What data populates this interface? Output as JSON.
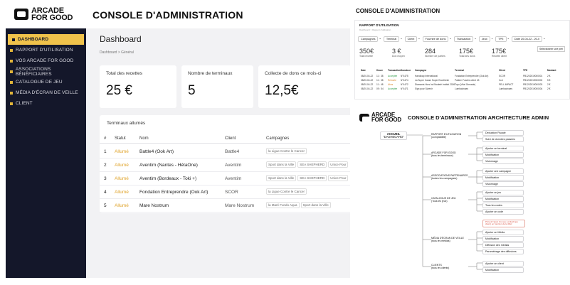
{
  "brand": {
    "line1": "ARCADE",
    "line2": "FOR GOOD"
  },
  "header": {
    "title": "CONSOLE D'ADMINISTRATION"
  },
  "sidebar": {
    "items": [
      {
        "label": "DASHBOARD",
        "active": true
      },
      {
        "label": "RAPPORT D'UTILISATION"
      },
      {
        "label": "VOS ARCADE FOR GOOD"
      },
      {
        "label": "ASSOCIATIONS BÉNÉFICIAIRES"
      },
      {
        "label": "CATALOGUE DE JEU"
      },
      {
        "label": "MÉDIA D'ÉCRAN DE VEILLE"
      },
      {
        "label": "CLIENT"
      }
    ]
  },
  "dashboard": {
    "title": "Dashboard",
    "breadcrumb": "Dashboard > Général",
    "cards": [
      {
        "label": "Total des recettes",
        "value": "25 €"
      },
      {
        "label": "Nombre de terminaux",
        "value": "5"
      },
      {
        "label": "Collecte de dons ce mois-ci",
        "value": "12,5€"
      }
    ],
    "terminals": {
      "title": "Terminaux allumés",
      "columns": [
        "#",
        "Statut",
        "Nom",
        "Client",
        "Campagnes"
      ],
      "rows": [
        {
          "n": "1",
          "status": "Allumé",
          "name": "Battle4 (Ook Art)",
          "client": "Battle4",
          "campaigns": [
            "la Ligue Contre le Cancer"
          ]
        },
        {
          "n": "2",
          "status": "Allumé",
          "name": "Aventim (Nantes - HétaOne)",
          "client": "Aventim",
          "campaigns": [
            "Sport dans la Ville",
            "SEA SHEPHERD",
            "Unice Pour"
          ]
        },
        {
          "n": "3",
          "status": "Allumé",
          "name": "Aventim (Bordeaux - Toki +)",
          "client": "Aventim",
          "campaigns": [
            "Sport dans la Ville",
            "SEA SHEPHERD",
            "Unice Pour"
          ]
        },
        {
          "n": "4",
          "status": "Allumé",
          "name": "Fondation Entreprendre (Ook Art)",
          "client": "SCOR",
          "campaigns": [
            "la Ligue Contre le Cancer"
          ]
        },
        {
          "n": "5",
          "status": "Allumé",
          "name": "Mare Nostrum",
          "client": "Mare Nostrum",
          "campaigns": [
            "la Maré Fundo Aqua",
            "Sport dans la Ville"
          ]
        }
      ]
    }
  },
  "report": {
    "section_title": "CONSOLE D'ADMINISTRATION",
    "heading": "RAPPORT D'UTILISATION",
    "breadcrumb": "Dashboard > Rapport d'utilisation",
    "filters": [
      "Campagnes",
      "Terminal",
      "Client",
      "Fournée de dons",
      "Transaction",
      "Jeux",
      "TPE",
      "Date 20-04-22 - 20-0"
    ],
    "select_label": "Sélectionner une péri",
    "metrics": [
      {
        "value": "350€",
        "label": "Total recette"
      },
      {
        "value": "3 €",
        "label": "Don moyen"
      },
      {
        "value": "284",
        "label": "Nombre de parties"
      },
      {
        "value": "175€",
        "label": "Total des dons"
      },
      {
        "value": "175€",
        "label": "Recette client"
      }
    ],
    "columns": [
      "Date",
      "Heure",
      "Transaction",
      "Donateur",
      "Campagne",
      "Terminal",
      "Client",
      "TPE",
      "Montant"
    ],
    "rows": [
      {
        "date": "08/20-04-22",
        "heure": "11 : 38",
        "transaction": "Acceptée",
        "donateur": "N°4475",
        "campagne": "Handicap International",
        "terminal": "Fondation Entreprendre (Ook Art)",
        "client": "SCOR",
        "tpe": "PB1202019000001",
        "montant": "2 €"
      },
      {
        "date": "08/20-04-22",
        "heure": "11 : 38",
        "transaction": "Refusée",
        "donateur": "N°4474",
        "campagne": "La Super Cause Super Excellente",
        "terminal": "Pattern Fusées client 43",
        "client": "Xcd",
        "tpe": "PB1202019000002",
        "montant": "5 €"
      },
      {
        "date": "08/20-04-22",
        "heure": "11 : 48",
        "transaction": "Abus",
        "donateur": "N°4472",
        "campagne": "Diamants Hors Ind Modeté Institut 2026",
        "terminal": "Toyo (Vital Grenade)",
        "client": "PELL IMPACT",
        "tpe": "PB1202019000003",
        "montant": "2 €"
      },
      {
        "date": "08/20-04-22",
        "heure": "09 : 54",
        "transaction": "Acceptée",
        "donateur": "N°4471",
        "campagne": "Sign pour l'Avenir",
        "terminal": "Lumbacinaes",
        "client": "Lumbacinaes",
        "tpe": "PB1202019000004",
        "montant": "2 €"
      }
    ]
  },
  "architecture": {
    "title": "CONSOLE D'ADMINISTRATION ARCHITECTURE ADMIN",
    "root": {
      "line1": "ACCUEIL",
      "line2": "\"DASHBOARD\""
    },
    "sections": [
      {
        "label": "RAPPORT D'UTILISATION",
        "sub": "(comptabilité)",
        "children": [
          "Déduction Fiscale",
          "Suivi de données passées"
        ]
      },
      {
        "label": "ARCADE FOR GOOD",
        "sub": "(tous les terminaux)",
        "children": [
          "Ajouter un terminal",
          "Modification",
          "Visionnage"
        ]
      },
      {
        "label": "ASSOCIATIONS PARTENAIRES",
        "sub": "(toutes les campagnes)",
        "children": [
          "Ajouter une campagne",
          "Modification",
          "Visionnage"
        ]
      },
      {
        "label": "CATALOGUE DE JEU",
        "sub": "(Tous les jeux)",
        "children": [
          "Ajouter un jeu",
          "Modification",
          "Tous les codes",
          "Ajouter un code"
        ]
      },
      {
        "label": "MÉDIA D'ÉCRAN DE VEILLE",
        "sub": "(tous les médias)",
        "children": [
          "Ajouter un Média",
          "Modification",
          "Diffusion des médias",
          "Paramétrage des diffusions"
        ]
      },
      {
        "label": "CLIENTS",
        "sub": "(tous les clients)",
        "children": [
          "Ajouter un client",
          "Modification"
        ]
      }
    ],
    "note": "Prévoir l'ajout d'un jeu exclusif (jeu client) en fonction de la MàJ"
  }
}
